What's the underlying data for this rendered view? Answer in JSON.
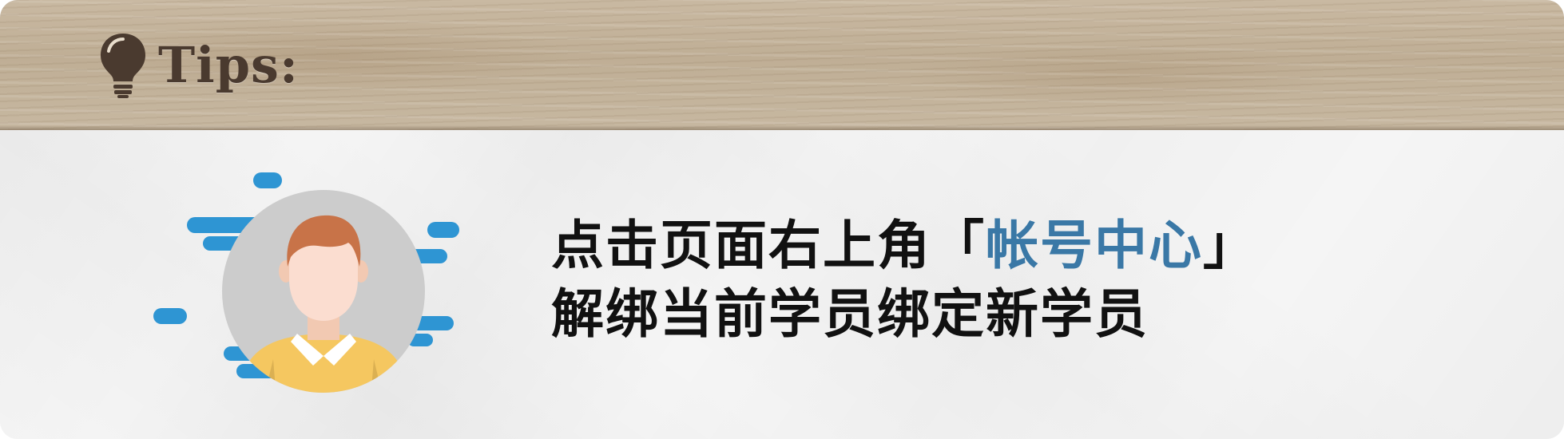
{
  "header": {
    "label": "Tips:",
    "icon": "lightbulb-icon"
  },
  "message": {
    "line1_prefix": "点击页面右上角「",
    "line1_highlight": "帐号中心",
    "line1_suffix": "」",
    "line2": "解绑当前学员绑定新学员"
  },
  "illustration": {
    "icon": "user-avatar-icon"
  },
  "colors": {
    "highlight": "#3a78a6",
    "accent_blue": "#2e95d3",
    "shirt": "#f5c760",
    "hair": "#c87348",
    "circle": "#cccccc"
  }
}
